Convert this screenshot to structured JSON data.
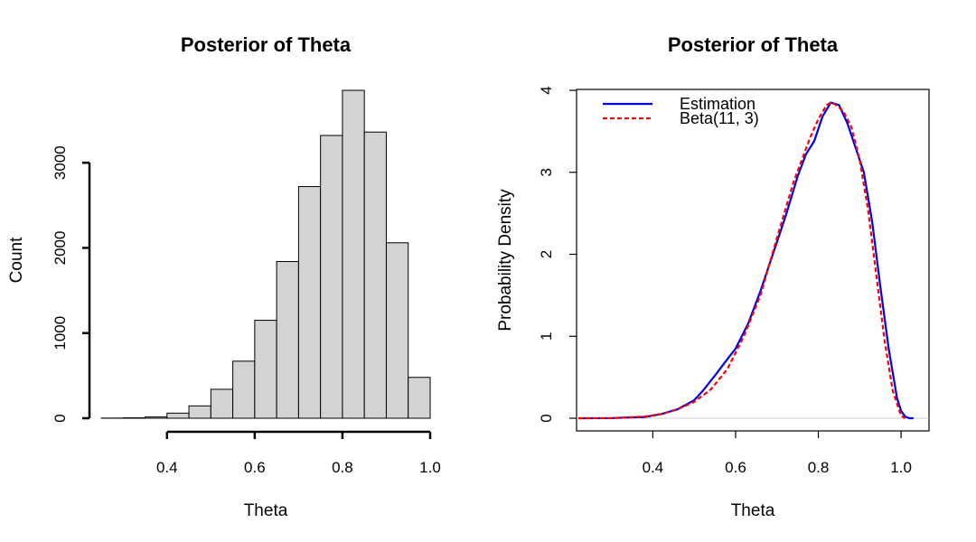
{
  "chart_data": [
    {
      "type": "bar",
      "title": "Posterior of Theta",
      "xlabel": "Theta",
      "ylabel": "Count",
      "xlim": [
        0.25,
        1.0
      ],
      "ylim": [
        0,
        3850
      ],
      "bin_width": 0.05,
      "x_ticks": [
        "0.4",
        "0.6",
        "0.8",
        "1.0"
      ],
      "y_ticks": [
        "0",
        "1000",
        "2000",
        "3000"
      ],
      "bins": [
        {
          "start": 0.25,
          "end": 0.3,
          "count": 2
        },
        {
          "start": 0.3,
          "end": 0.35,
          "count": 5
        },
        {
          "start": 0.35,
          "end": 0.4,
          "count": 15
        },
        {
          "start": 0.4,
          "end": 0.45,
          "count": 60
        },
        {
          "start": 0.45,
          "end": 0.5,
          "count": 145
        },
        {
          "start": 0.5,
          "end": 0.55,
          "count": 340
        },
        {
          "start": 0.55,
          "end": 0.6,
          "count": 670
        },
        {
          "start": 0.6,
          "end": 0.65,
          "count": 1150
        },
        {
          "start": 0.65,
          "end": 0.7,
          "count": 1840
        },
        {
          "start": 0.7,
          "end": 0.75,
          "count": 2720
        },
        {
          "start": 0.75,
          "end": 0.8,
          "count": 3320
        },
        {
          "start": 0.8,
          "end": 0.85,
          "count": 3850
        },
        {
          "start": 0.85,
          "end": 0.9,
          "count": 3360
        },
        {
          "start": 0.9,
          "end": 0.95,
          "count": 2060
        },
        {
          "start": 0.95,
          "end": 1.0,
          "count": 480
        }
      ],
      "colors": {
        "bar_fill": "#d3d3d3",
        "bar_stroke": "#000000"
      }
    },
    {
      "type": "line",
      "title": "Posterior of Theta",
      "xlabel": "Theta",
      "ylabel": "Probability Density",
      "xlim": [
        0.22,
        1.05
      ],
      "ylim": [
        0,
        4
      ],
      "x_ticks": [
        "0.4",
        "0.6",
        "0.8",
        "1.0"
      ],
      "y_ticks": [
        "0",
        "1",
        "2",
        "3",
        "4"
      ],
      "legend_position": "top-left",
      "series": [
        {
          "name": "Estimation",
          "color": "#0000ee",
          "style": "solid",
          "x": [
            0.22,
            0.3,
            0.38,
            0.42,
            0.46,
            0.5,
            0.52,
            0.55,
            0.58,
            0.6,
            0.63,
            0.66,
            0.69,
            0.72,
            0.75,
            0.77,
            0.79,
            0.81,
            0.83,
            0.85,
            0.87,
            0.89,
            0.91,
            0.93,
            0.95,
            0.97,
            0.99,
            1.0,
            1.01,
            1.02,
            1.03
          ],
          "y": [
            0.0,
            0.002,
            0.015,
            0.05,
            0.11,
            0.22,
            0.33,
            0.52,
            0.72,
            0.85,
            1.15,
            1.55,
            2.0,
            2.45,
            2.95,
            3.22,
            3.38,
            3.68,
            3.85,
            3.82,
            3.6,
            3.3,
            3.0,
            2.4,
            1.6,
            0.85,
            0.25,
            0.09,
            0.02,
            0.0,
            0.0
          ]
        },
        {
          "name": "Beta(11, 3)",
          "color": "#ff0000",
          "style": "dashed",
          "x": [
            0.22,
            0.3,
            0.38,
            0.42,
            0.46,
            0.5,
            0.54,
            0.58,
            0.62,
            0.66,
            0.7,
            0.74,
            0.78,
            0.8,
            0.82,
            0.83,
            0.84,
            0.86,
            0.88,
            0.9,
            0.92,
            0.94,
            0.96,
            0.98,
            1.0,
            1.01
          ],
          "y": [
            0.0,
            0.001,
            0.02,
            0.05,
            0.11,
            0.2,
            0.35,
            0.6,
            1.0,
            1.5,
            2.2,
            2.88,
            3.42,
            3.65,
            3.82,
            3.85,
            3.83,
            3.75,
            3.55,
            3.15,
            2.55,
            1.75,
            0.95,
            0.33,
            0.03,
            0.0
          ]
        }
      ]
    }
  ]
}
